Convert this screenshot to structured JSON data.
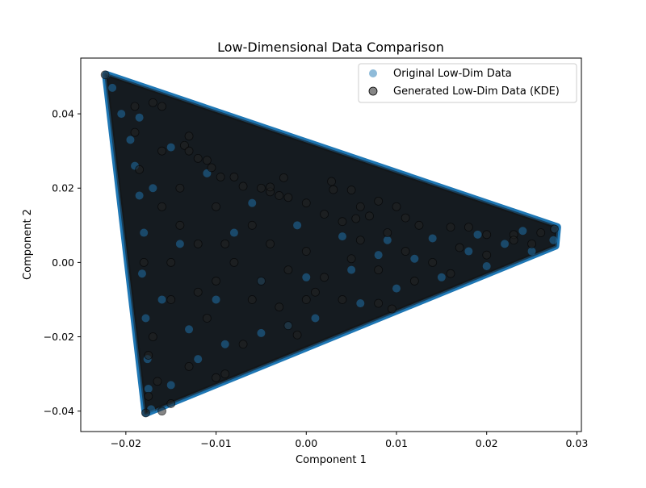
{
  "chart_data": {
    "type": "scatter",
    "title": "Low-Dimensional Data Comparison",
    "xlabel": "Component 1",
    "ylabel": "Component 2",
    "xlim": [
      -0.025,
      0.0305
    ],
    "ylim": [
      -0.0455,
      0.055
    ],
    "x_ticks": [
      {
        "value": -0.02,
        "label": "−0.02"
      },
      {
        "value": -0.01,
        "label": "−0.01"
      },
      {
        "value": 0.0,
        "label": "0.00"
      },
      {
        "value": 0.01,
        "label": "0.01"
      },
      {
        "value": 0.02,
        "label": "0.02"
      },
      {
        "value": 0.03,
        "label": "0.03"
      }
    ],
    "y_ticks": [
      {
        "value": -0.04,
        "label": "−0.04"
      },
      {
        "value": -0.02,
        "label": "−0.02"
      },
      {
        "value": 0.0,
        "label": "0.00"
      },
      {
        "value": 0.02,
        "label": "0.02"
      },
      {
        "value": 0.04,
        "label": "0.04"
      }
    ],
    "grid": false,
    "legend_position": "top-right",
    "shape_vertices": [
      [
        -0.0222,
        0.0505
      ],
      [
        0.0278,
        0.0095
      ],
      [
        0.0276,
        0.0045
      ],
      [
        -0.0178,
        -0.0405
      ]
    ],
    "series": [
      {
        "name": "Original Low-Dim Data",
        "color": "#1f77b4",
        "alpha": 0.5,
        "points": [
          [
            -0.0222,
            0.0505
          ],
          [
            -0.0215,
            0.047
          ],
          [
            -0.0205,
            0.04
          ],
          [
            -0.0195,
            0.033
          ],
          [
            -0.019,
            0.026
          ],
          [
            -0.0185,
            0.018
          ],
          [
            -0.018,
            0.008
          ],
          [
            -0.0182,
            -0.003
          ],
          [
            -0.0178,
            -0.015
          ],
          [
            -0.0176,
            -0.026
          ],
          [
            -0.0175,
            -0.034
          ],
          [
            -0.0172,
            -0.0395
          ],
          [
            -0.015,
            -0.033
          ],
          [
            -0.012,
            -0.026
          ],
          [
            -0.009,
            -0.022
          ],
          [
            -0.005,
            -0.019
          ],
          [
            -0.002,
            -0.017
          ],
          [
            0.001,
            -0.015
          ],
          [
            0.006,
            -0.011
          ],
          [
            0.01,
            -0.007
          ],
          [
            0.015,
            -0.004
          ],
          [
            0.02,
            -0.001
          ],
          [
            0.025,
            0.003
          ],
          [
            0.0274,
            0.006
          ],
          [
            0.0276,
            0.009
          ],
          [
            0.024,
            0.0085
          ],
          [
            0.019,
            0.0075
          ],
          [
            0.014,
            0.0065
          ],
          [
            0.009,
            0.006
          ],
          [
            0.004,
            0.007
          ],
          [
            -0.001,
            0.01
          ],
          [
            -0.006,
            0.016
          ],
          [
            -0.011,
            0.024
          ],
          [
            -0.015,
            0.031
          ],
          [
            -0.0185,
            0.039
          ],
          [
            -0.01,
            -0.01
          ],
          [
            -0.005,
            -0.005
          ],
          [
            0.0,
            -0.004
          ],
          [
            0.005,
            -0.002
          ],
          [
            0.012,
            0.001
          ],
          [
            -0.014,
            0.005
          ],
          [
            -0.016,
            -0.01
          ],
          [
            -0.008,
            0.008
          ],
          [
            0.018,
            0.003
          ],
          [
            0.022,
            0.005
          ],
          [
            -0.017,
            0.02
          ],
          [
            -0.013,
            -0.018
          ],
          [
            0.008,
            0.002
          ]
        ]
      },
      {
        "name": "Generated Low-Dim Data (KDE)",
        "color": "#222222",
        "alpha": 0.55,
        "points": [
          [
            -0.0223,
            0.0505
          ],
          [
            -0.017,
            0.043
          ],
          [
            -0.016,
            0.042
          ],
          [
            -0.013,
            0.034
          ],
          [
            -0.0135,
            0.0315
          ],
          [
            -0.013,
            0.03
          ],
          [
            -0.012,
            0.028
          ],
          [
            -0.0105,
            0.0255
          ],
          [
            -0.011,
            0.0275
          ],
          [
            -0.0095,
            0.023
          ],
          [
            -0.008,
            0.023
          ],
          [
            -0.007,
            0.0205
          ],
          [
            -0.005,
            0.02
          ],
          [
            -0.004,
            0.019
          ],
          [
            -0.003,
            0.018
          ],
          [
            -0.0025,
            0.0228
          ],
          [
            -0.004,
            0.0203
          ],
          [
            -0.002,
            0.0175
          ],
          [
            0.0,
            0.016
          ],
          [
            0.003,
            0.0196
          ],
          [
            0.0028,
            0.0218
          ],
          [
            0.005,
            0.0195
          ],
          [
            0.006,
            0.015
          ],
          [
            0.008,
            0.0165
          ],
          [
            0.007,
            0.0125
          ],
          [
            0.01,
            0.015
          ],
          [
            0.011,
            0.012
          ],
          [
            0.0125,
            0.01
          ],
          [
            0.016,
            0.0095
          ],
          [
            0.018,
            0.0095
          ],
          [
            0.02,
            0.0075
          ],
          [
            0.023,
            0.0075
          ],
          [
            0.026,
            0.008
          ],
          [
            0.0275,
            0.009
          ],
          [
            0.004,
            0.011
          ],
          [
            0.0055,
            0.0118
          ],
          [
            0.002,
            0.013
          ],
          [
            0.0095,
            -0.0125
          ],
          [
            0.008,
            -0.011
          ],
          [
            -0.001,
            -0.0195
          ],
          [
            -0.002,
            -0.017
          ],
          [
            -0.009,
            -0.03
          ],
          [
            -0.01,
            -0.031
          ],
          [
            -0.015,
            -0.038
          ],
          [
            -0.016,
            -0.04
          ],
          [
            -0.0178,
            -0.0405
          ],
          [
            -0.0175,
            -0.036
          ],
          [
            -0.018,
            0.0
          ],
          [
            -0.017,
            -0.02
          ],
          [
            -0.015,
            -0.01
          ],
          [
            -0.014,
            0.01
          ],
          [
            -0.012,
            0.005
          ],
          [
            -0.01,
            -0.005
          ],
          [
            -0.008,
            0.0
          ],
          [
            -0.006,
            -0.01
          ],
          [
            -0.004,
            0.005
          ],
          [
            -0.002,
            -0.002
          ],
          [
            0.0,
            0.003
          ],
          [
            0.002,
            -0.004
          ],
          [
            0.005,
            0.001
          ],
          [
            0.008,
            -0.002
          ],
          [
            0.011,
            0.003
          ],
          [
            0.014,
            0.0
          ],
          [
            0.017,
            0.004
          ],
          [
            0.02,
            0.002
          ],
          [
            0.023,
            0.006
          ],
          [
            0.025,
            0.005
          ],
          [
            -0.019,
            0.035
          ],
          [
            -0.0185,
            0.025
          ],
          [
            -0.016,
            0.015
          ],
          [
            -0.013,
            -0.028
          ],
          [
            -0.011,
            -0.015
          ],
          [
            -0.007,
            -0.022
          ],
          [
            -0.003,
            -0.012
          ],
          [
            0.001,
            -0.008
          ],
          [
            0.004,
            -0.01
          ],
          [
            0.012,
            -0.005
          ],
          [
            0.016,
            -0.003
          ],
          [
            -0.016,
            0.03
          ],
          [
            -0.014,
            0.02
          ],
          [
            -0.01,
            0.015
          ],
          [
            -0.006,
            0.01
          ],
          [
            -0.019,
            0.042
          ],
          [
            -0.0175,
            -0.025
          ],
          [
            -0.0165,
            -0.032
          ],
          [
            -0.009,
            0.005
          ],
          [
            -0.005,
            -0.005
          ],
          [
            0.0,
            -0.01
          ],
          [
            0.006,
            0.006
          ],
          [
            0.009,
            0.008
          ],
          [
            -0.012,
            -0.008
          ],
          [
            -0.015,
            0.0
          ]
        ]
      }
    ]
  }
}
